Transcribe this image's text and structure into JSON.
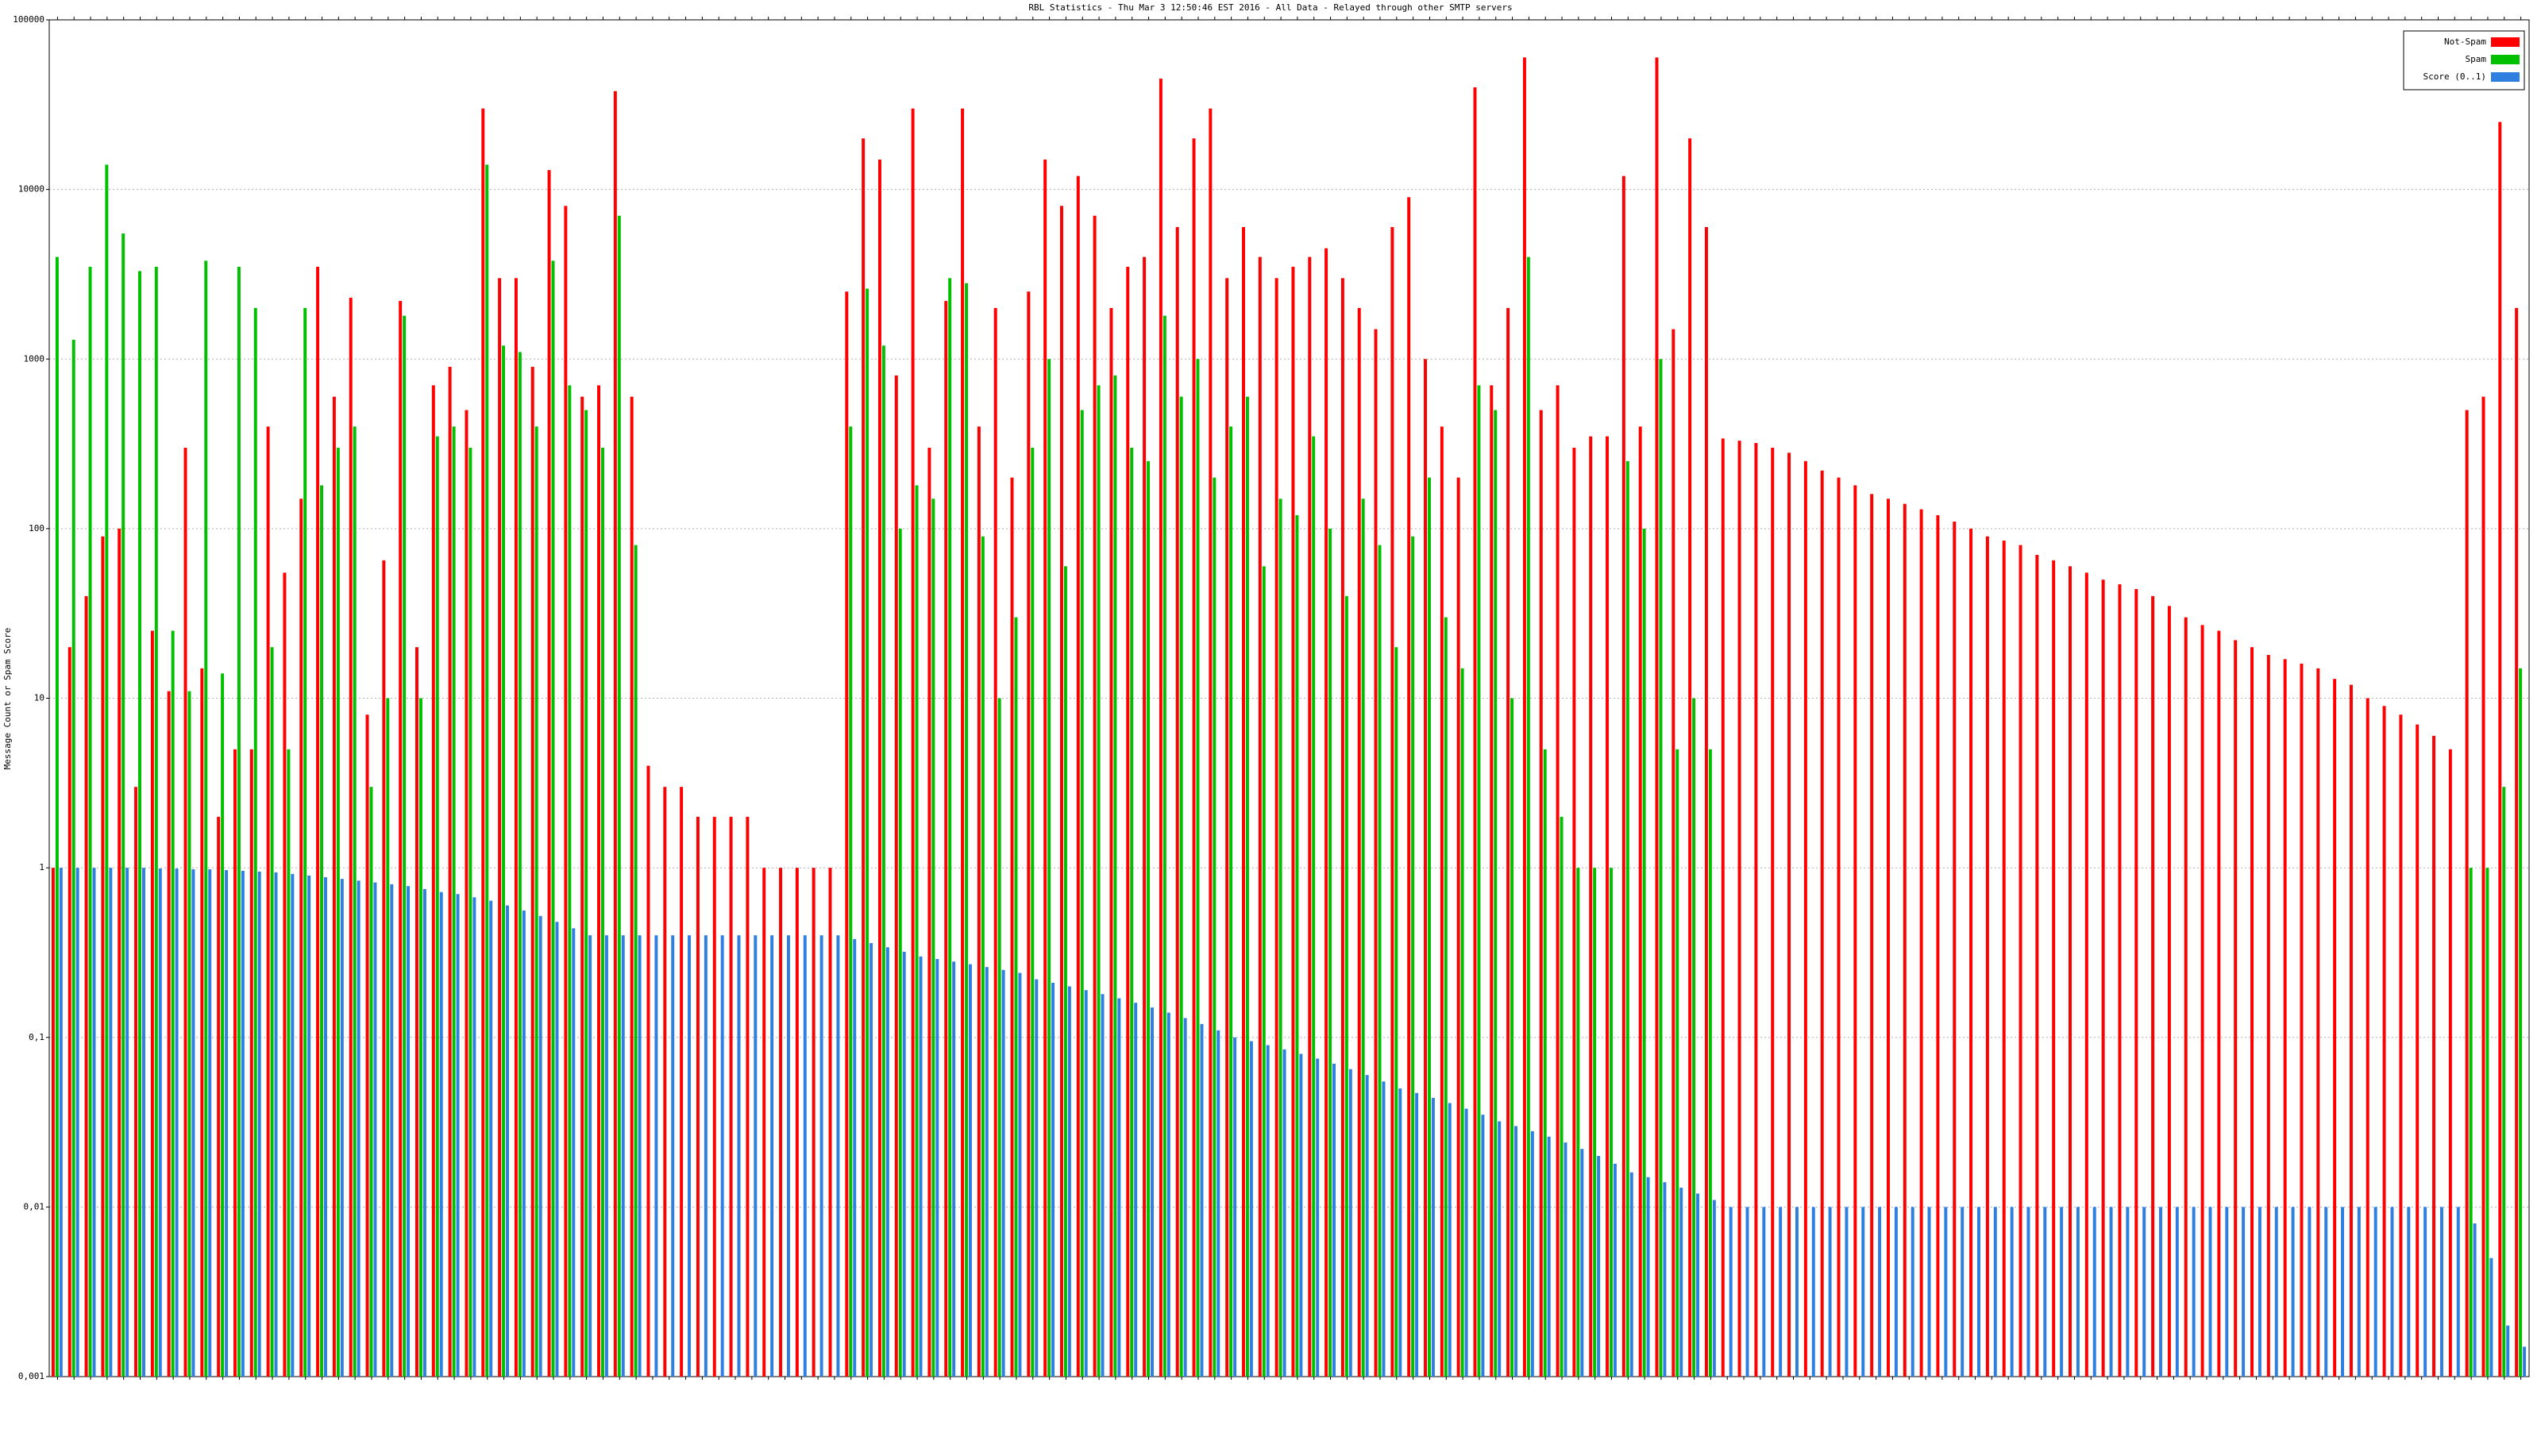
{
  "chart_data": {
    "type": "bar",
    "title": "RBL Statistics - Thu Mar  3 12:50:46 EST 2016 - All Data - Relayed through other SMTP servers",
    "y_label": "Message Count or Spam Score",
    "ylog": true,
    "grid": true,
    "legend": "upper right",
    "ylim": [
      0.001,
      100000
    ],
    "yticks": [
      {
        "value": 0.001,
        "label": "0,001"
      },
      {
        "value": 0.01,
        "label": "0,01"
      },
      {
        "value": 0.1,
        "label": "0,1"
      },
      1,
      10,
      100,
      1000,
      10000,
      100000
    ],
    "categories": [
      null,
      null,
      null,
      null,
      null,
      null,
      null,
      null,
      null,
      null,
      null,
      null,
      null,
      null,
      null,
      null,
      null,
      null,
      null,
      null,
      null,
      null,
      null,
      null,
      null,
      null,
      null,
      null,
      null,
      null,
      null,
      null,
      null,
      null,
      null,
      null,
      null,
      null,
      null,
      null,
      null,
      null,
      null,
      null,
      null,
      null,
      null,
      null,
      null,
      null,
      null,
      null,
      null,
      null,
      null,
      null,
      null,
      null,
      null,
      null,
      null,
      null,
      null,
      null,
      null,
      null,
      null,
      null,
      null,
      null,
      null,
      null,
      null,
      null,
      null,
      null,
      null,
      null,
      null,
      null,
      null,
      null,
      null,
      null,
      null,
      null,
      null,
      null,
      null,
      null,
      null,
      null,
      null,
      null,
      null,
      null,
      null,
      null,
      null,
      null,
      null,
      null,
      null,
      null,
      null,
      null,
      null,
      null,
      null,
      null,
      null,
      null,
      null,
      null,
      null,
      null,
      null,
      null,
      null,
      null,
      null,
      null,
      null,
      null,
      null,
      null,
      null,
      null,
      null,
      null,
      null,
      null,
      null,
      null,
      null,
      null,
      null,
      null,
      null,
      null,
      null,
      null,
      null,
      null,
      null,
      null,
      null,
      null,
      null,
      null
    ],
    "series": [
      {
        "name": "Not-Spam",
        "color": "#ff0000",
        "values": [
          1,
          20,
          40,
          90,
          100,
          3,
          25,
          11,
          300,
          15,
          2,
          5,
          5,
          400,
          55,
          150,
          3500,
          600,
          2300,
          8,
          65,
          2200,
          20,
          700,
          900,
          500,
          30000,
          3000,
          3000,
          900,
          13000,
          8000,
          600,
          700,
          38000,
          600,
          4,
          3,
          3,
          2,
          2,
          2,
          2,
          1,
          1,
          1,
          1,
          1,
          2500,
          20000,
          15000,
          800,
          30000,
          300,
          2200,
          30000,
          400,
          2000,
          200,
          2500,
          15000,
          8000,
          12000,
          7000,
          2000,
          3500,
          4000,
          45000,
          6000,
          20000,
          30000,
          3000,
          6000,
          4000,
          3000,
          3500,
          4000,
          4500,
          3000,
          2000,
          1500,
          6000,
          9000,
          1000,
          400,
          200,
          40000,
          700,
          2000,
          60000,
          500,
          700,
          300,
          350,
          350,
          12000,
          400,
          60000,
          1500,
          20000,
          6000,
          340,
          330,
          320,
          300,
          280,
          250,
          220,
          200,
          180,
          160,
          150,
          140,
          130,
          120,
          110,
          100,
          90,
          85,
          80,
          70,
          65,
          60,
          55,
          50,
          47,
          44,
          40,
          35,
          30,
          27,
          25,
          22,
          20,
          18,
          17,
          16,
          15,
          13,
          12,
          10,
          9,
          8,
          7,
          6,
          5,
          500,
          600,
          25000,
          2000
        ]
      },
      {
        "name": "Spam",
        "color": "#00c000",
        "values": [
          4000,
          1300,
          3500,
          14000,
          5500,
          3300,
          3500,
          25,
          11,
          3800,
          14,
          3500,
          2000,
          20,
          5,
          2000,
          180,
          300,
          400,
          3,
          10,
          1800,
          10,
          350,
          400,
          300,
          14000,
          1200,
          1100,
          400,
          3800,
          700,
          500,
          300,
          7000,
          80,
          null,
          null,
          null,
          null,
          null,
          null,
          null,
          null,
          null,
          null,
          null,
          null,
          400,
          2600,
          1200,
          100,
          180,
          150,
          3000,
          2800,
          90,
          10,
          30,
          300,
          1000,
          60,
          500,
          700,
          800,
          300,
          250,
          1800,
          600,
          1000,
          200,
          400,
          600,
          60,
          150,
          120,
          350,
          100,
          40,
          150,
          80,
          20,
          90,
          200,
          30,
          15,
          700,
          500,
          10,
          4000,
          5,
          2,
          1,
          1,
          1,
          250,
          100,
          1000,
          5,
          10,
          5,
          null,
          null,
          null,
          null,
          null,
          null,
          null,
          null,
          null,
          null,
          null,
          null,
          null,
          null,
          null,
          null,
          null,
          null,
          null,
          null,
          null,
          null,
          null,
          null,
          null,
          null,
          null,
          null,
          null,
          null,
          null,
          null,
          null,
          null,
          null,
          null,
          null,
          null,
          null,
          null,
          null,
          null,
          null,
          null,
          null,
          1,
          1,
          3,
          15
        ]
      },
      {
        "name": "Score (0..1)",
        "color": "#2f7fe0",
        "values": [
          1,
          1,
          1,
          1,
          1,
          1,
          0.99,
          0.99,
          0.98,
          0.98,
          0.97,
          0.96,
          0.95,
          0.94,
          0.92,
          0.9,
          0.88,
          0.86,
          0.84,
          0.82,
          0.8,
          0.78,
          0.75,
          0.72,
          0.7,
          0.67,
          0.64,
          0.6,
          0.56,
          0.52,
          0.48,
          0.44,
          0.4,
          0.4,
          0.4,
          0.4,
          0.4,
          0.4,
          0.4,
          0.4,
          0.4,
          0.4,
          0.4,
          0.4,
          0.4,
          0.4,
          0.4,
          0.4,
          0.38,
          0.36,
          0.34,
          0.32,
          0.3,
          0.29,
          0.28,
          0.27,
          0.26,
          0.25,
          0.24,
          0.22,
          0.21,
          0.2,
          0.19,
          0.18,
          0.17,
          0.16,
          0.15,
          0.14,
          0.13,
          0.12,
          0.11,
          0.1,
          0.095,
          0.09,
          0.085,
          0.08,
          0.075,
          0.07,
          0.065,
          0.06,
          0.055,
          0.05,
          0.047,
          0.044,
          0.041,
          0.038,
          0.035,
          0.032,
          0.03,
          0.028,
          0.026,
          0.024,
          0.022,
          0.02,
          0.018,
          0.016,
          0.015,
          0.014,
          0.013,
          0.012,
          0.011,
          0.01,
          0.01,
          0.01,
          0.01,
          0.01,
          0.01,
          0.01,
          0.01,
          0.01,
          0.01,
          0.01,
          0.01,
          0.01,
          0.01,
          0.01,
          0.01,
          0.01,
          0.01,
          0.01,
          0.01,
          0.01,
          0.01,
          0.01,
          0.01,
          0.01,
          0.01,
          0.01,
          0.01,
          0.01,
          0.01,
          0.01,
          0.01,
          0.01,
          0.01,
          0.01,
          0.01,
          0.01,
          0.01,
          0.01,
          0.01,
          0.01,
          0.01,
          0.01,
          0.01,
          0.01,
          0.008,
          0.005,
          0.002,
          0.0015
        ]
      }
    ]
  }
}
